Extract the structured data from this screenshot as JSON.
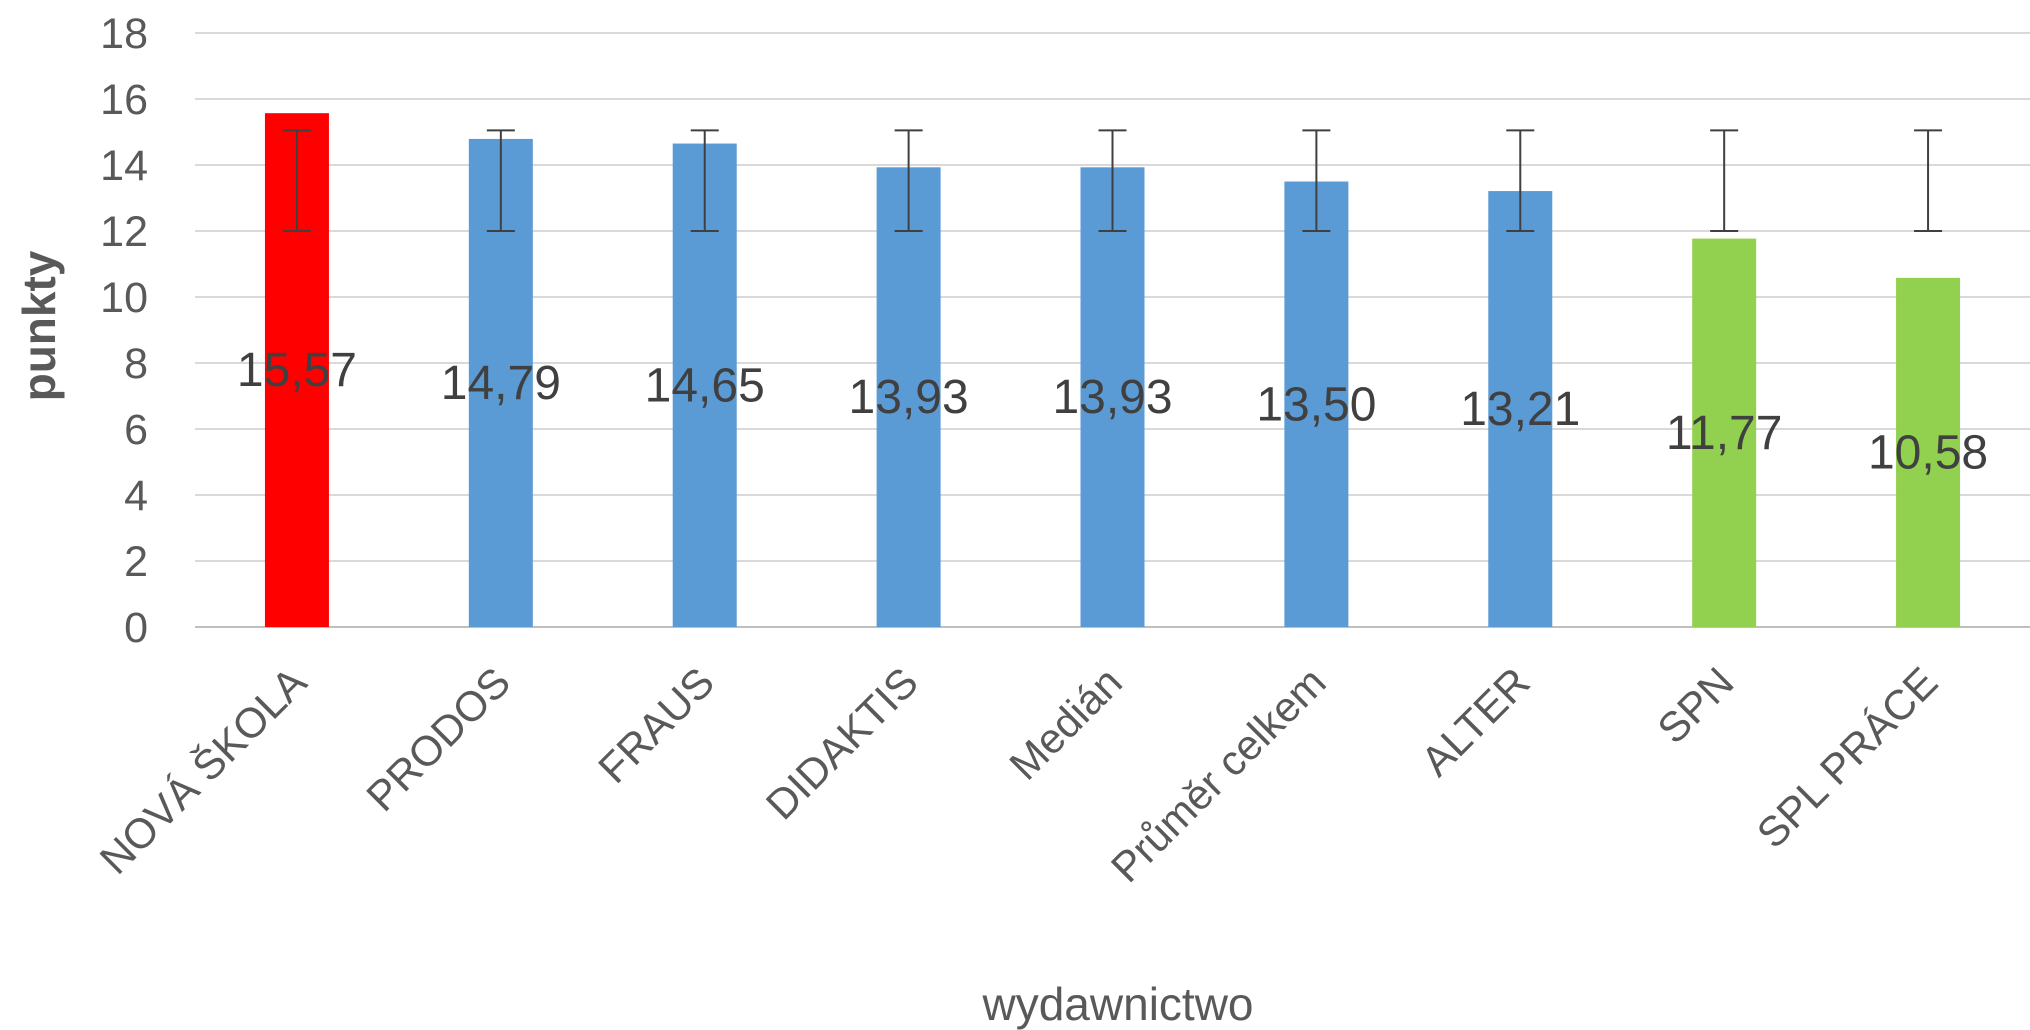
{
  "chart_data": {
    "type": "bar",
    "title": "",
    "xlabel": "wydawnictwo",
    "ylabel": "punkty",
    "ylim": [
      0,
      18
    ],
    "ytick_step": 2,
    "grid": true,
    "legend": "none",
    "categories": [
      "NOVÁ ŠKOLA",
      "PRODOS",
      "FRAUS",
      "DIDAKTIS",
      "Medián",
      "Průměr celkem",
      "ALTER",
      "SPN",
      "SPL PRÁCE"
    ],
    "values": [
      15.57,
      14.79,
      14.65,
      13.93,
      13.93,
      13.5,
      13.21,
      11.77,
      10.58
    ],
    "value_labels": [
      "15,57",
      "14,79",
      "14,65",
      "13,93",
      "13,93",
      "13,50",
      "13,21",
      "11,77",
      "10,58"
    ],
    "error_low": [
      12,
      12,
      12,
      12,
      12,
      12,
      12,
      12,
      12
    ],
    "error_high": [
      15.05,
      15.05,
      15.05,
      15.05,
      15.05,
      15.05,
      15.05,
      15.05,
      15.05
    ],
    "bar_colors": [
      "#ff0000",
      "#5b9bd5",
      "#5b9bd5",
      "#5b9bd5",
      "#5b9bd5",
      "#5b9bd5",
      "#5b9bd5",
      "#92d050",
      "#92d050"
    ],
    "colors": {
      "grid": "#d9d9d9",
      "axis": "#bfbfbf",
      "error_bar": "#404040",
      "text": "#595959"
    }
  }
}
